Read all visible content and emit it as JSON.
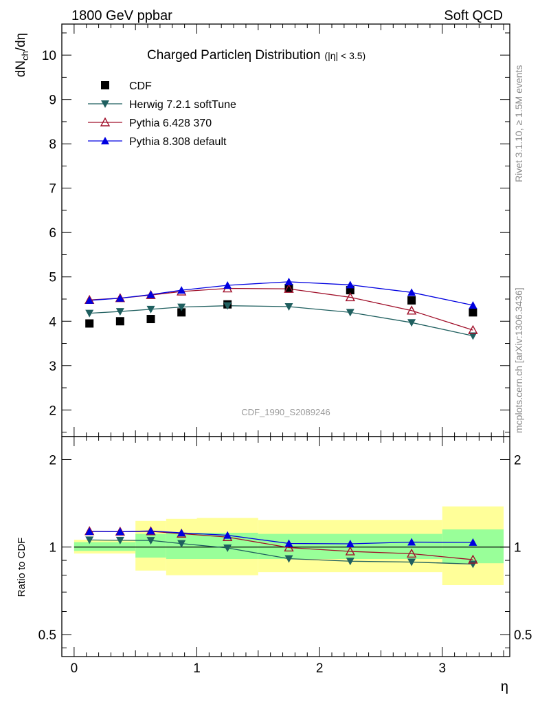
{
  "header": {
    "left": "1800 GeV ppbar",
    "right": "Soft QCD"
  },
  "side_text": {
    "top": "Rivet 3.1.10, ≥ 1.5M events",
    "bottom": "mcplots.cern.ch [arXiv:1306.3436]"
  },
  "chart_data": [
    {
      "type": "scatter",
      "panel": "main",
      "title_main": "Charged Particleη Distribution",
      "title_sub": "(|η| < 3.5)",
      "ylabel": "dN",
      "ylabel_sub": "ch",
      "ylabel_tail": "/dη",
      "watermark": "CDF_1990_S2089246",
      "xlim": [
        -0.1,
        3.55
      ],
      "ylim": [
        1.4,
        10.7
      ],
      "y_ticks": [
        "2",
        "3",
        "4",
        "5",
        "6",
        "7",
        "8",
        "9",
        "10"
      ],
      "y_tick_values": [
        2,
        3,
        4,
        5,
        6,
        7,
        8,
        9,
        10
      ],
      "x": [
        0.125,
        0.375,
        0.625,
        0.875,
        1.25,
        1.75,
        2.25,
        2.75,
        3.25
      ],
      "legend_position": "top-left",
      "series": [
        {
          "name": "CDF",
          "marker": "square",
          "color": "#000000",
          "values": [
            3.95,
            4.0,
            4.05,
            4.2,
            4.38,
            4.75,
            4.7,
            4.47,
            4.2
          ]
        },
        {
          "name": "Herwig 7.2.1 softTune",
          "marker": "triangle-down",
          "color": "#1f5f5f",
          "values": [
            4.18,
            4.22,
            4.27,
            4.32,
            4.35,
            4.33,
            4.2,
            3.97,
            3.67
          ]
        },
        {
          "name": "Pythia 6.428 370",
          "marker": "triangle-open",
          "color": "#a0102a",
          "values": [
            4.48,
            4.52,
            4.59,
            4.67,
            4.74,
            4.73,
            4.54,
            4.24,
            3.8
          ]
        },
        {
          "name": "Pythia 8.308 default",
          "marker": "triangle-up",
          "color": "#0000e0",
          "values": [
            4.47,
            4.52,
            4.6,
            4.7,
            4.81,
            4.89,
            4.82,
            4.65,
            4.36
          ]
        }
      ]
    },
    {
      "type": "scatter",
      "panel": "ratio",
      "ylabel": "Ratio to CDF",
      "xlabel": "η",
      "yscale": "log",
      "ylim": [
        0.42,
        2.4
      ],
      "xlim": [
        -0.1,
        3.55
      ],
      "y_ticks": [
        "2",
        "1",
        "0.5"
      ],
      "y_tick_values": [
        2,
        1,
        0.5
      ],
      "x_ticks": [
        "0",
        "1",
        "2",
        "3"
      ],
      "x_tick_values": [
        0,
        1,
        2,
        3
      ],
      "x": [
        0.125,
        0.375,
        0.625,
        0.875,
        1.25,
        1.75,
        2.25,
        2.75,
        3.25
      ],
      "bands": {
        "bins": [
          [
            0,
            0.5
          ],
          [
            0.5,
            0.75
          ],
          [
            0.75,
            1.0
          ],
          [
            1.0,
            1.5
          ],
          [
            1.5,
            3.0
          ],
          [
            3.0,
            3.5
          ]
        ],
        "inner": [
          [
            0.97,
            1.04
          ],
          [
            0.92,
            1.11
          ],
          [
            0.91,
            1.12
          ],
          [
            0.91,
            1.12
          ],
          [
            0.91,
            1.11
          ],
          [
            0.88,
            1.15
          ]
        ],
        "outer": [
          [
            0.95,
            1.06
          ],
          [
            0.83,
            1.23
          ],
          [
            0.8,
            1.25
          ],
          [
            0.8,
            1.26
          ],
          [
            0.82,
            1.24
          ],
          [
            0.74,
            1.38
          ]
        ],
        "inner_color": "#99ff99",
        "outer_color": "#ffff99"
      },
      "series": [
        {
          "name": "Herwig 7.2.1 softTune",
          "marker": "triangle-down",
          "color": "#1f5f5f",
          "values": [
            1.058,
            1.055,
            1.054,
            1.028,
            0.993,
            0.912,
            0.894,
            0.888,
            0.874
          ]
        },
        {
          "name": "Pythia 6.428 370",
          "marker": "triangle-open",
          "color": "#a0102a",
          "values": [
            1.134,
            1.13,
            1.133,
            1.112,
            1.082,
            0.996,
            0.966,
            0.949,
            0.905
          ]
        },
        {
          "name": "Pythia 8.308 default",
          "marker": "triangle-up",
          "color": "#0000e0",
          "values": [
            1.132,
            1.13,
            1.136,
            1.119,
            1.098,
            1.029,
            1.026,
            1.04,
            1.038
          ]
        }
      ]
    }
  ]
}
